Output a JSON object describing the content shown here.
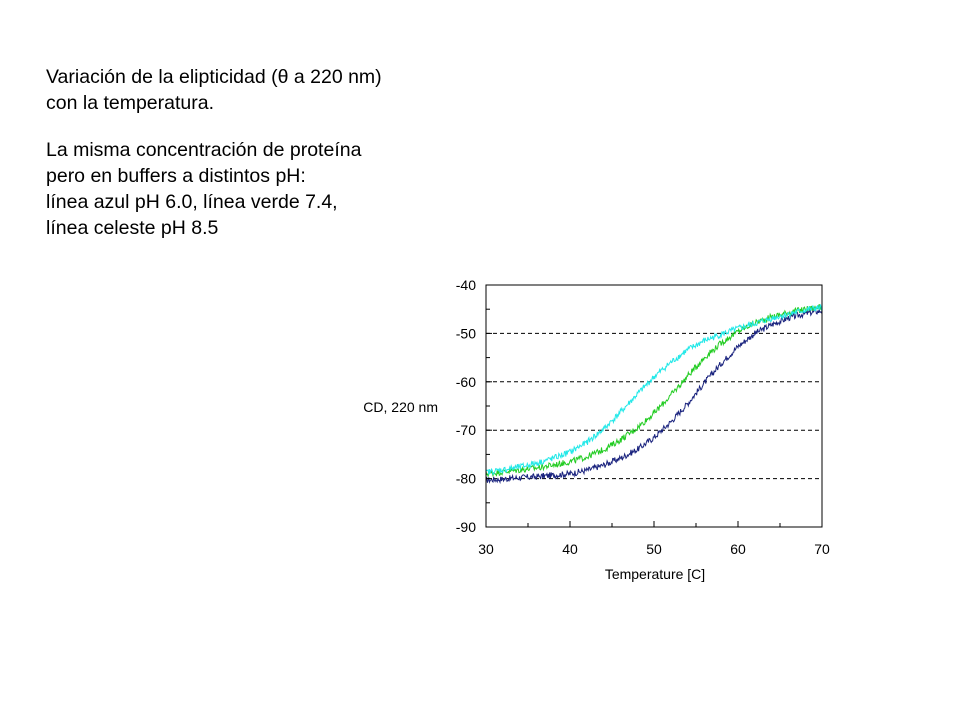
{
  "caption": {
    "title_line1": "Variación de la elipticidad (θ a 220 nm)",
    "title_line2": "con la temperatura.",
    "body_line1": "La misma concentración de proteína",
    "body_line2": "pero en buffers a distintos pH:",
    "body_line3": "línea azul pH 6.0,  línea verde 7.4,",
    "body_line4": "línea celeste pH 8.5"
  },
  "chart_data": {
    "type": "line",
    "xlabel": "Temperature [C]",
    "ylabel": "CD, 220 nm",
    "xlim": [
      30,
      70
    ],
    "ylim": [
      -90,
      -40
    ],
    "xticks": [
      30,
      40,
      50,
      60,
      70
    ],
    "yticks": [
      -40,
      -50,
      -60,
      -70,
      -80,
      -90
    ],
    "grid": "dashed horizontal at -50, -60, -70, -80",
    "series": [
      {
        "color": "#1a237e",
        "x": [
          30,
          32,
          34,
          36,
          38,
          40,
          42,
          44,
          46,
          48,
          50,
          52,
          54,
          56,
          58,
          60,
          62,
          64,
          66,
          68,
          70
        ],
        "values": [
          -80.3,
          -80.1,
          -79.8,
          -79.6,
          -79.3,
          -79.0,
          -78.3,
          -77.2,
          -75.8,
          -74.0,
          -71.5,
          -68.3,
          -64.5,
          -60.2,
          -56.2,
          -52.7,
          -50.0,
          -48.2,
          -46.8,
          -45.9,
          -45.3
        ]
      },
      {
        "color": "#22cc22",
        "x": [
          30,
          32,
          34,
          36,
          38,
          40,
          42,
          44,
          46,
          48,
          50,
          52,
          54,
          56,
          58,
          60,
          62,
          64,
          66,
          68,
          70
        ],
        "values": [
          -79.0,
          -78.6,
          -78.2,
          -77.8,
          -77.2,
          -76.5,
          -75.5,
          -74.0,
          -72.0,
          -69.5,
          -66.5,
          -62.8,
          -58.8,
          -55.0,
          -52.0,
          -49.6,
          -47.8,
          -46.6,
          -45.7,
          -45.0,
          -44.5
        ]
      },
      {
        "color": "#22e8e8",
        "x": [
          30,
          32,
          34,
          36,
          38,
          40,
          42,
          44,
          46,
          48,
          50,
          52,
          54,
          56,
          58,
          60,
          62,
          64,
          66,
          68,
          70
        ],
        "values": [
          -78.7,
          -78.2,
          -77.6,
          -76.8,
          -75.8,
          -74.5,
          -72.5,
          -69.8,
          -66.3,
          -62.6,
          -59.0,
          -56.0,
          -53.4,
          -51.5,
          -50.2,
          -49.0,
          -48.0,
          -46.9,
          -46.0,
          -45.2,
          -44.6
        ]
      }
    ]
  }
}
